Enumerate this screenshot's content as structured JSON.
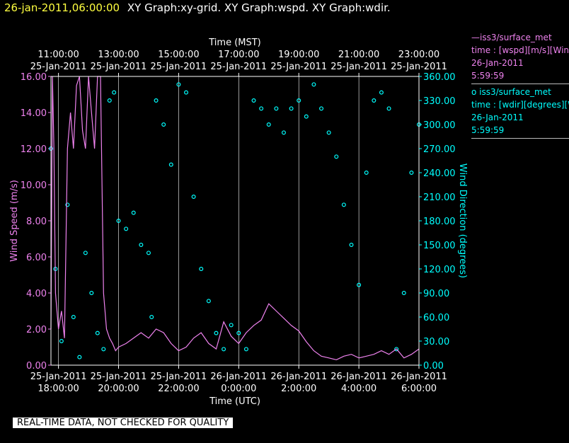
{
  "header": {
    "timestamp": "26-jan-2011,06:00:00",
    "graph_titles": "XY Graph:xy-grid.  XY Graph:wspd.  XY Graph:wdir."
  },
  "legend": {
    "wspd": {
      "line1": "—iss3/surface_met",
      "line2": "time : [wspd][m/s][Wind",
      "line3": "26-Jan-2011",
      "line4": "5:59:59"
    },
    "wdir": {
      "line1": "o iss3/surface_met",
      "line2": "time : [wdir][degrees][W",
      "line3": "26-Jan-2011",
      "line4": "5:59:59"
    }
  },
  "footer": {
    "quality_note": "REAL-TIME DATA, NOT CHECKED FOR QUALITY"
  },
  "colors": {
    "wspd": "#ee82ee",
    "wdir": "#00ffff",
    "background": "#000000",
    "grid": "#ffffff"
  },
  "chart_data": {
    "type": "line",
    "top_axis": {
      "label": "Time (MST)",
      "ticks": [
        {
          "time": "11:00:00",
          "date": "25-Jan-2011"
        },
        {
          "time": "13:00:00",
          "date": "25-Jan-2011"
        },
        {
          "time": "15:00:00",
          "date": "25-Jan-2011"
        },
        {
          "time": "17:00:00",
          "date": "25-Jan-2011"
        },
        {
          "time": "19:00:00",
          "date": "25-Jan-2011"
        },
        {
          "time": "21:00:00",
          "date": "25-Jan-2011"
        },
        {
          "time": "23:00:00",
          "date": "25-Jan-2011"
        }
      ]
    },
    "bottom_axis": {
      "label": "Time (UTC)",
      "ticks": [
        {
          "date": "25-Jan-2011",
          "time": "18:00:00"
        },
        {
          "date": "25-Jan-2011",
          "time": "20:00:00"
        },
        {
          "date": "25-Jan-2011",
          "time": "22:00:00"
        },
        {
          "date": "26-Jan-2011",
          "time": "0:00:00"
        },
        {
          "date": "26-Jan-2011",
          "time": "2:00:00"
        },
        {
          "date": "26-Jan-2011",
          "time": "4:00:00"
        },
        {
          "date": "26-Jan-2011",
          "time": "6:00:00"
        }
      ],
      "range_hours_utc": [
        17.75,
        30.0
      ]
    },
    "left_axis": {
      "label": "Wind Speed (m/s)",
      "ylim": [
        0,
        16
      ],
      "ticks": [
        "0.00",
        "2.00",
        "4.00",
        "6.00",
        "8.00",
        "10.00",
        "12.00",
        "14.00",
        "16.00"
      ]
    },
    "right_axis": {
      "label": "Wind Direction (degrees)",
      "ylim": [
        0,
        360
      ],
      "ticks": [
        "0.00",
        "30.00",
        "60.00",
        "90.00",
        "120.00",
        "150.00",
        "180.00",
        "210.00",
        "240.00",
        "270.00",
        "300.00",
        "330.00",
        "360.00"
      ]
    },
    "grid": "vertical",
    "series": [
      {
        "name": "iss3/surface_met wspd",
        "axis": "left",
        "style": "line",
        "x_hours_utc": [
          17.75,
          17.8,
          17.85,
          17.9,
          18.0,
          18.1,
          18.2,
          18.3,
          18.4,
          18.5,
          18.6,
          18.7,
          18.8,
          18.9,
          19.0,
          19.1,
          19.2,
          19.3,
          19.4,
          19.5,
          19.6,
          19.7,
          19.8,
          19.9,
          20.0,
          20.25,
          20.5,
          20.75,
          21.0,
          21.25,
          21.5,
          21.75,
          22.0,
          22.25,
          22.5,
          22.75,
          23.0,
          23.25,
          23.5,
          23.75,
          24.0,
          24.25,
          24.5,
          24.75,
          25.0,
          25.25,
          25.5,
          25.75,
          26.0,
          26.25,
          26.5,
          26.75,
          27.0,
          27.25,
          27.5,
          27.75,
          28.0,
          28.25,
          28.5,
          28.75,
          29.0,
          29.25,
          29.5,
          29.75,
          30.0
        ],
        "y": [
          2.0,
          16.0,
          12.0,
          4.0,
          2.0,
          3.0,
          1.5,
          12.0,
          14.0,
          12.0,
          15.5,
          16.0,
          13.0,
          12.0,
          16.0,
          14.0,
          12.0,
          16.0,
          16.0,
          4.0,
          2.0,
          1.5,
          1.2,
          0.8,
          1.0,
          1.2,
          1.5,
          1.8,
          1.5,
          2.0,
          1.8,
          1.2,
          0.8,
          1.0,
          1.5,
          1.8,
          1.2,
          0.9,
          2.4,
          1.6,
          1.2,
          1.8,
          2.2,
          2.5,
          3.4,
          3.0,
          2.6,
          2.2,
          1.9,
          1.3,
          0.8,
          0.5,
          0.4,
          0.3,
          0.5,
          0.6,
          0.4,
          0.5,
          0.6,
          0.8,
          0.6,
          0.9,
          0.4,
          0.6,
          0.9
        ]
      },
      {
        "name": "iss3/surface_met wdir",
        "axis": "right",
        "style": "markers",
        "x_hours_utc": [
          17.75,
          17.9,
          18.1,
          18.3,
          18.5,
          18.7,
          18.9,
          19.1,
          19.3,
          19.5,
          19.7,
          19.85,
          20.0,
          20.25,
          20.5,
          20.75,
          21.0,
          21.1,
          21.25,
          21.5,
          21.75,
          22.0,
          22.25,
          22.5,
          22.75,
          23.0,
          23.25,
          23.5,
          23.75,
          24.0,
          24.25,
          24.5,
          24.75,
          25.0,
          25.25,
          25.5,
          25.75,
          26.0,
          26.25,
          26.5,
          26.75,
          27.0,
          27.25,
          27.5,
          27.75,
          28.0,
          28.25,
          28.5,
          28.75,
          29.0,
          29.25,
          29.5,
          29.75,
          30.0
        ],
        "y": [
          270,
          120,
          30,
          200,
          60,
          10,
          140,
          90,
          40,
          20,
          330,
          340,
          180,
          170,
          190,
          150,
          140,
          60,
          330,
          300,
          250,
          350,
          340,
          210,
          120,
          80,
          40,
          20,
          50,
          40,
          20,
          330,
          320,
          300,
          320,
          290,
          320,
          330,
          310,
          350,
          320,
          290,
          260,
          200,
          150,
          100,
          240,
          330,
          340,
          320,
          20,
          90,
          240,
          300
        ]
      }
    ]
  }
}
